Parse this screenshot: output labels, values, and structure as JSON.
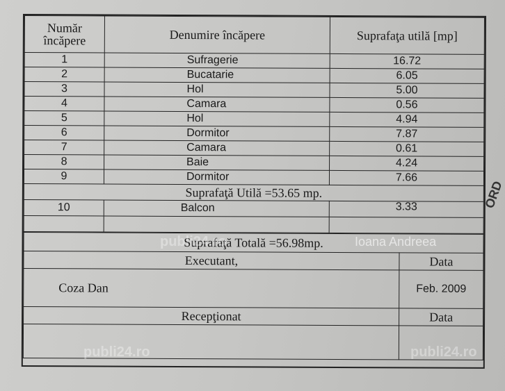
{
  "header": {
    "col_number": "Număr încăpere",
    "col_name": "Denumire încăpere",
    "col_area": "Suprafaţa utilă [mp]"
  },
  "rooms": [
    {
      "no": "1",
      "name": "Sufragerie",
      "area": "16.72"
    },
    {
      "no": "2",
      "name": "Bucatarie",
      "area": "6.05"
    },
    {
      "no": "3",
      "name": "Hol",
      "area": "5.00"
    },
    {
      "no": "4",
      "name": "Camara",
      "area": "0.56"
    },
    {
      "no": "5",
      "name": "Hol",
      "area": "4.94"
    },
    {
      "no": "6",
      "name": "Dormitor",
      "area": "7.87"
    },
    {
      "no": "7",
      "name": "Camara",
      "area": "0.61"
    },
    {
      "no": "8",
      "name": "Baie",
      "area": "4.24"
    },
    {
      "no": "9",
      "name": "Dormitor",
      "area": "7.66"
    }
  ],
  "useful_total": "Suprafaţă Utilă =53.65 mp.",
  "balcony": {
    "no": "10",
    "name": "Balcon",
    "area": "3.33"
  },
  "grand_total": "Suprafaţă Totală =56.98mp.",
  "executant": {
    "label": "Executant,",
    "date_label": "Data",
    "name": "Coza Dan",
    "date": "Feb. 2009"
  },
  "receptionat": {
    "label": "Recepţionat",
    "date_label": "Data"
  },
  "watermarks": {
    "site": "publi24.ro",
    "author": "Ioana Andreea"
  },
  "stamp_text": "ORD"
}
